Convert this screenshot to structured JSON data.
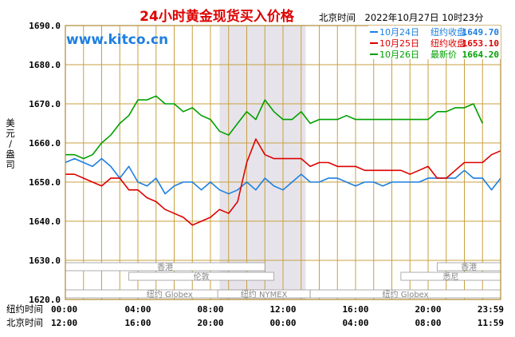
{
  "chart_data": {
    "type": "line",
    "title": "24小时黄金现货买入价格",
    "timestamp": "北京时间　2022年10月27日 10时23分",
    "watermark": "www.kitco.cn",
    "ylabel": "美元/盎司",
    "ylim": [
      1620,
      1690
    ],
    "yticks": [
      "1690.0",
      "1680.0",
      "1670.0",
      "1660.0",
      "1650.0",
      "1640.0",
      "1630.0",
      "1620.0"
    ],
    "ytick_values": [
      1690,
      1680,
      1670,
      1660,
      1650,
      1640,
      1630,
      1620
    ],
    "xlim": [
      0,
      24
    ],
    "ny_label": "纽约时间",
    "bj_label": "北京时间",
    "ny_ticks": [
      "00:00",
      "04:00",
      "08:00",
      "12:00",
      "16:00",
      "20:00",
      "23:59"
    ],
    "bj_ticks": [
      "12:00",
      "16:00",
      "20:00",
      "00:00",
      "04:00",
      "08:00",
      "11:59"
    ],
    "tick_hours": [
      0,
      4,
      8,
      12,
      16,
      20,
      23.98
    ],
    "grid": true,
    "shaded_range": [
      8.5,
      13.25
    ],
    "legend": [
      {
        "date": "10月24日",
        "label": "纽约收盘",
        "value": "1649.70",
        "color": "#1e7fe0"
      },
      {
        "date": "10月25日",
        "label": "纽约收盘",
        "value": "1653.10",
        "color": "#dd0000"
      },
      {
        "date": "10月26日",
        "label": "最新价",
        "value": "1664.20",
        "color": "#00a000"
      }
    ],
    "sessions": [
      {
        "label": "香港",
        "start": 0,
        "end": 11
      },
      {
        "label": "纽约 Globex",
        "start": 0,
        "end": 11.5
      },
      {
        "label": "伦敦",
        "start": 3.5,
        "end": 11.5
      },
      {
        "label": "纽约 NYMEX",
        "start": 8.4,
        "end": 13.5
      },
      {
        "label": "纽约 Globex",
        "start": 13.5,
        "end": 24
      },
      {
        "label": "香港",
        "start": 20.5,
        "end": 24
      },
      {
        "label": "悉尼",
        "start": 18.5,
        "end": 24
      }
    ],
    "series": [
      {
        "name": "10月24日",
        "color": "#1e7fe0",
        "x": [
          0,
          0.5,
          1,
          1.5,
          2,
          2.5,
          3,
          3.5,
          4,
          4.5,
          5,
          5.5,
          6,
          6.5,
          7,
          7.5,
          8,
          8.5,
          9,
          9.5,
          10,
          10.5,
          11,
          11.5,
          12,
          12.5,
          13,
          13.5,
          14,
          14.5,
          15,
          15.5,
          16,
          16.5,
          17,
          17.5,
          18,
          18.5,
          19,
          19.5,
          20,
          20.5,
          21,
          21.5,
          22,
          22.5,
          23,
          23.5,
          24
        ],
        "y": [
          1655,
          1656,
          1655,
          1654,
          1656,
          1654,
          1651,
          1654,
          1650,
          1649,
          1651,
          1647,
          1649,
          1650,
          1650,
          1648,
          1650,
          1648,
          1647,
          1648,
          1650,
          1648,
          1651,
          1649,
          1648,
          1650,
          1652,
          1650,
          1650,
          1651,
          1651,
          1650,
          1649,
          1650,
          1650,
          1649,
          1650,
          1650,
          1650,
          1650,
          1651,
          1651,
          1651,
          1651,
          1653,
          1651,
          1651,
          1648,
          1651
        ]
      },
      {
        "name": "10月25日",
        "color": "#dd0000",
        "x": [
          0,
          0.5,
          1,
          1.5,
          2,
          2.5,
          3,
          3.5,
          4,
          4.5,
          5,
          5.5,
          6,
          6.5,
          7,
          7.5,
          8,
          8.5,
          9,
          9.5,
          10,
          10.5,
          11,
          11.5,
          12,
          12.5,
          13,
          13.5,
          14,
          14.5,
          15,
          15.5,
          16,
          16.5,
          17,
          17.5,
          18,
          18.5,
          19,
          19.5,
          20,
          20.5,
          21,
          21.5,
          22,
          22.5,
          23,
          23.5,
          24
        ],
        "y": [
          1652,
          1652,
          1651,
          1650,
          1649,
          1651,
          1651,
          1648,
          1648,
          1646,
          1645,
          1643,
          1642,
          1641,
          1639,
          1640,
          1641,
          1643,
          1642,
          1645,
          1655,
          1661,
          1657,
          1656,
          1656,
          1656,
          1656,
          1654,
          1655,
          1655,
          1654,
          1654,
          1654,
          1653,
          1653,
          1653,
          1653,
          1653,
          1652,
          1653,
          1654,
          1651,
          1651,
          1653,
          1655,
          1655,
          1655,
          1657,
          1658
        ]
      },
      {
        "name": "10月26日",
        "color": "#00a000",
        "x": [
          0,
          0.5,
          1,
          1.5,
          2,
          2.5,
          3,
          3.5,
          4,
          4.5,
          5,
          5.5,
          6,
          6.5,
          7,
          7.5,
          8,
          8.5,
          9,
          9.5,
          10,
          10.5,
          11,
          11.5,
          12,
          12.5,
          13,
          13.5,
          14,
          14.5,
          15,
          15.5,
          16,
          16.5,
          17,
          17.5,
          18,
          18.5,
          19,
          19.5,
          20,
          20.5,
          21,
          21.5,
          22,
          22.5,
          23
        ],
        "y": [
          1657,
          1657,
          1656,
          1657,
          1660,
          1662,
          1665,
          1667,
          1671,
          1671,
          1672,
          1670,
          1670,
          1668,
          1669,
          1667,
          1666,
          1663,
          1662,
          1665,
          1668,
          1666,
          1671,
          1668,
          1666,
          1666,
          1668,
          1665,
          1666,
          1666,
          1666,
          1667,
          1666,
          1666,
          1666,
          1666,
          1666,
          1666,
          1666,
          1666,
          1666,
          1668,
          1668,
          1669,
          1669,
          1670,
          1665
        ]
      }
    ]
  }
}
